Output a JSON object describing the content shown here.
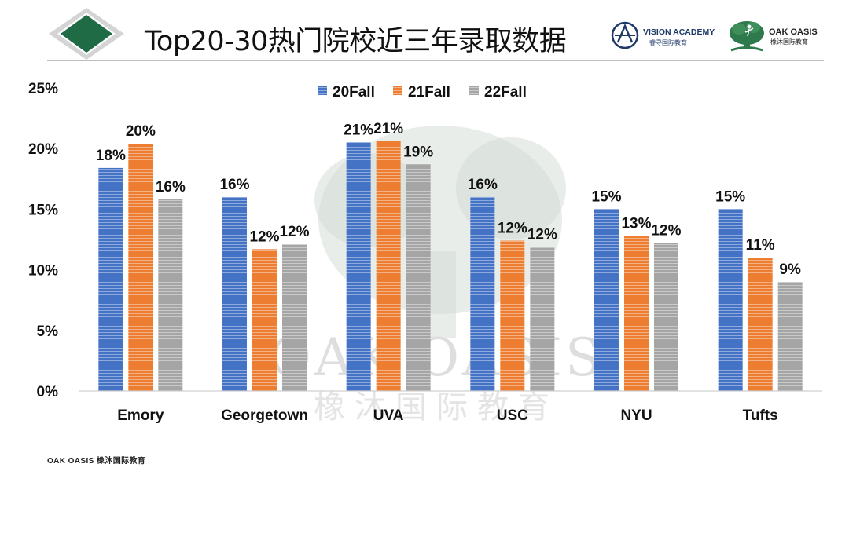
{
  "title": "Top20-30热门院校近三年录取数据",
  "brand": {
    "vision_name": "VISION ACADEMY",
    "vision_sub": "睿寻国际教育",
    "oak_name": "OAK OASIS",
    "oak_sub": "橡沐国际教育",
    "watermark_latin": "OAK OASIS",
    "watermark_cjk": "橡沐国际教育"
  },
  "footer": {
    "text": "OAK OASIS 橡沐国际教育"
  },
  "colors": {
    "accent_green": "#1e6b45",
    "diamond_grey": "#d4d4d4",
    "series": [
      "#4472c4",
      "#ed7d31",
      "#a5a5a5"
    ]
  },
  "chart_data": {
    "type": "bar",
    "categories": [
      "Emory",
      "Georgetown",
      "UVA",
      "USC",
      "NYU",
      "Tufts"
    ],
    "series": [
      {
        "name": "20Fall",
        "values": [
          18,
          16,
          21,
          16,
          15,
          15
        ]
      },
      {
        "name": "21Fall",
        "values": [
          20,
          12,
          21,
          12,
          13,
          11
        ]
      },
      {
        "name": "22Fall",
        "values": [
          16,
          12,
          19,
          12,
          12,
          9
        ]
      }
    ],
    "bar_values": [
      [
        18.4,
        16.0,
        20.5,
        16.0,
        15.0,
        15.0
      ],
      [
        20.4,
        11.7,
        20.6,
        12.4,
        12.8,
        11.0
      ],
      [
        15.8,
        12.1,
        18.7,
        11.9,
        12.2,
        9.0
      ]
    ],
    "value_suffix": "%",
    "ylim": [
      0,
      25
    ],
    "y_ticks": [
      "0%",
      "5%",
      "10%",
      "15%",
      "20%",
      "25%"
    ],
    "xlabel": "",
    "ylabel": "",
    "legend_position": "top-center",
    "grid": false
  }
}
